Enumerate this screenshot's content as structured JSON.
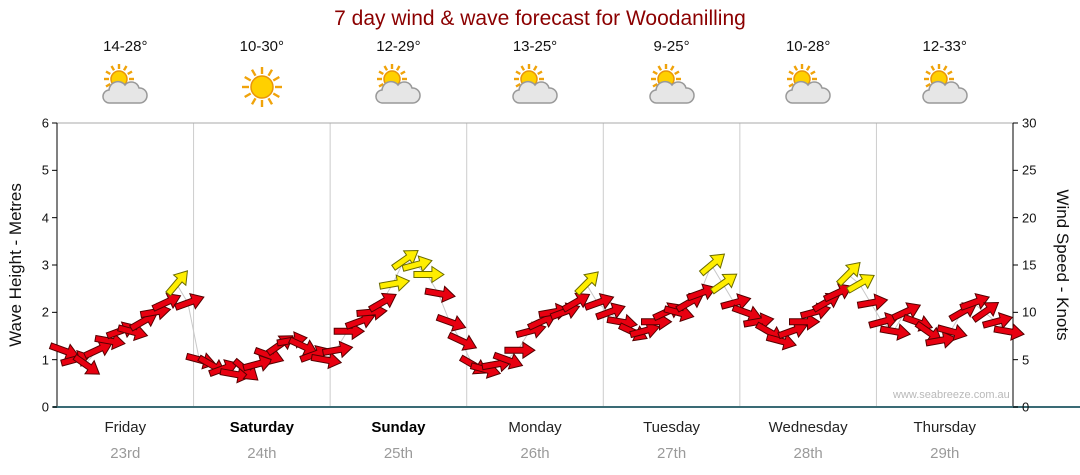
{
  "watermark": "www.seabreeze.com.au",
  "chart_data": {
    "type": "scatter",
    "subtype": "wind-arrow-forecast",
    "title": "7 day wind & wave forecast for Woodanilling",
    "title_color": "#8b0000",
    "left_axis": {
      "label": "Wave Height - Metres",
      "min": 0,
      "max": 6,
      "ticks": [
        0,
        1,
        2,
        3,
        4,
        5,
        6
      ]
    },
    "right_axis": {
      "label": "Wind Speed - Knots",
      "min": 0,
      "max": 30,
      "ticks": [
        0,
        5,
        10,
        15,
        20,
        25,
        30
      ]
    },
    "x_axis": {
      "span_hours": 168,
      "grid": "vertical-day-boundaries"
    },
    "days": [
      {
        "name": "Friday",
        "date": "23rd",
        "temp": "14-28°",
        "icon": "sun-cloud",
        "bold": false
      },
      {
        "name": "Saturday",
        "date": "24th",
        "temp": "10-30°",
        "icon": "sun",
        "bold": true
      },
      {
        "name": "Sunday",
        "date": "25th",
        "temp": "12-29°",
        "icon": "sun-cloud",
        "bold": true
      },
      {
        "name": "Monday",
        "date": "26th",
        "temp": "13-25°",
        "icon": "sun-cloud",
        "bold": false
      },
      {
        "name": "Tuesday",
        "date": "27th",
        "temp": "9-25°",
        "icon": "sun-cloud",
        "bold": false
      },
      {
        "name": "Wednesday",
        "date": "28th",
        "temp": "10-28°",
        "icon": "sun-cloud",
        "bold": false
      },
      {
        "name": "Thursday",
        "date": "29th",
        "temp": "12-33°",
        "icon": "sun-cloud",
        "bold": false
      }
    ],
    "arrow_colors": {
      "normal_fill": "#e80010",
      "normal_stroke": "#550000",
      "strong_fill": "#ffee00",
      "strong_stroke": "#6b6b00",
      "trend_line": "#c8c8c8"
    },
    "point_format": [
      "hour_offset",
      "wind_speed_knots",
      "direction_deg_cw_from_east",
      "color r=red y=yellow"
    ],
    "points": [
      [
        1,
        6,
        20,
        "r"
      ],
      [
        3,
        5,
        -15,
        "r"
      ],
      [
        5,
        4.5,
        35,
        "r"
      ],
      [
        7,
        6,
        -25,
        "r"
      ],
      [
        9,
        7,
        10,
        "r"
      ],
      [
        11,
        8,
        -20,
        "r"
      ],
      [
        13,
        8,
        15,
        "r"
      ],
      [
        15,
        9,
        -30,
        "r"
      ],
      [
        17,
        10,
        -10,
        "r"
      ],
      [
        19,
        11,
        -25,
        "r"
      ],
      [
        21,
        13,
        -50,
        "y"
      ],
      [
        23,
        11,
        -20,
        "r"
      ],
      [
        25,
        5,
        15,
        "r"
      ],
      [
        27,
        4.5,
        30,
        "r"
      ],
      [
        29,
        4,
        -20,
        "r"
      ],
      [
        31,
        3.5,
        10,
        "r"
      ],
      [
        33,
        4,
        40,
        "r"
      ],
      [
        35,
        4.5,
        -15,
        "r"
      ],
      [
        37,
        5.5,
        20,
        "r"
      ],
      [
        39,
        6.5,
        -35,
        "r"
      ],
      [
        41,
        7,
        -10,
        "r"
      ],
      [
        43,
        6.5,
        25,
        "r"
      ],
      [
        45,
        5.5,
        -20,
        "r"
      ],
      [
        47,
        5,
        10,
        "r"
      ],
      [
        49,
        6,
        -10,
        "r"
      ],
      [
        51,
        8,
        0,
        "r"
      ],
      [
        53,
        9,
        -20,
        "r"
      ],
      [
        55,
        10,
        -5,
        "r"
      ],
      [
        57,
        11,
        -30,
        "r"
      ],
      [
        59,
        13,
        -10,
        "y"
      ],
      [
        61,
        15.5,
        -35,
        "y"
      ],
      [
        63,
        15,
        -15,
        "y"
      ],
      [
        65,
        14,
        0,
        "y"
      ],
      [
        67,
        12,
        10,
        "r"
      ],
      [
        69,
        9,
        20,
        "r"
      ],
      [
        71,
        7,
        25,
        "r"
      ],
      [
        73,
        4.5,
        30,
        "r"
      ],
      [
        75,
        4,
        15,
        "r"
      ],
      [
        77,
        4.5,
        -10,
        "r"
      ],
      [
        79,
        5,
        20,
        "r"
      ],
      [
        81,
        6,
        0,
        "r"
      ],
      [
        83,
        8,
        -15,
        "r"
      ],
      [
        85,
        9,
        -25,
        "r"
      ],
      [
        87,
        10,
        -10,
        "r"
      ],
      [
        89,
        10,
        -20,
        "r"
      ],
      [
        91,
        11,
        -30,
        "r"
      ],
      [
        93,
        13,
        -45,
        "y"
      ],
      [
        95,
        11,
        -20,
        "r"
      ],
      [
        97,
        10,
        -20,
        "r"
      ],
      [
        99,
        9,
        10,
        "r"
      ],
      [
        101,
        8,
        25,
        "r"
      ],
      [
        103,
        8,
        -15,
        "r"
      ],
      [
        105,
        9,
        0,
        "r"
      ],
      [
        107,
        10,
        -25,
        "r"
      ],
      [
        109,
        10,
        15,
        "r"
      ],
      [
        111,
        11,
        -30,
        "r"
      ],
      [
        113,
        12,
        -20,
        "r"
      ],
      [
        115,
        15,
        -40,
        "y"
      ],
      [
        117,
        13,
        -35,
        "y"
      ],
      [
        119,
        11,
        -15,
        "r"
      ],
      [
        121,
        10,
        20,
        "r"
      ],
      [
        123,
        9,
        -10,
        "r"
      ],
      [
        125,
        8,
        30,
        "r"
      ],
      [
        127,
        7,
        15,
        "r"
      ],
      [
        129,
        8,
        -20,
        "r"
      ],
      [
        131,
        9,
        0,
        "r"
      ],
      [
        133,
        10,
        -15,
        "r"
      ],
      [
        135,
        11,
        -30,
        "r"
      ],
      [
        137,
        12,
        -25,
        "r"
      ],
      [
        139,
        14,
        -45,
        "y"
      ],
      [
        141,
        13,
        -30,
        "y"
      ],
      [
        143,
        11,
        -10,
        "r"
      ],
      [
        145,
        9,
        -15,
        "r"
      ],
      [
        147,
        8,
        10,
        "r"
      ],
      [
        149,
        10,
        -25,
        "r"
      ],
      [
        151,
        9,
        20,
        "r"
      ],
      [
        153,
        8,
        35,
        "r"
      ],
      [
        155,
        7,
        -10,
        "r"
      ],
      [
        157,
        8,
        15,
        "r"
      ],
      [
        159,
        10,
        -30,
        "r"
      ],
      [
        161,
        11,
        -20,
        "r"
      ],
      [
        163,
        10,
        -35,
        "r"
      ],
      [
        165,
        9,
        -15,
        "r"
      ],
      [
        167,
        8,
        10,
        "r"
      ]
    ]
  }
}
